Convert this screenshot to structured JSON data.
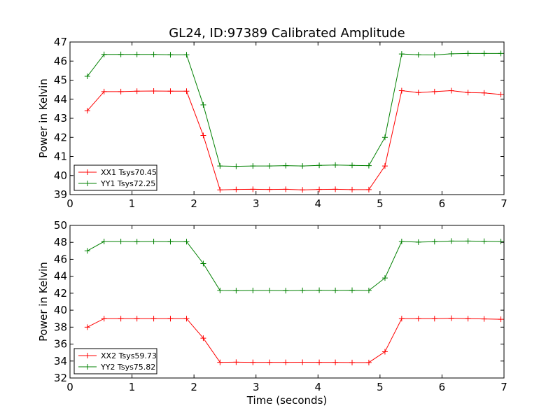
{
  "figure_title": "GL24, ID:97389 Calibrated Amplitude",
  "chart_data": [
    {
      "type": "line",
      "title": "GL24, ID:97389 Calibrated Amplitude",
      "xlabel": "",
      "ylabel": "Power in Kelvin",
      "xlim": [
        0,
        7
      ],
      "ylim": [
        39,
        47
      ],
      "xticks": [
        0,
        1,
        2,
        3,
        4,
        5,
        6,
        7
      ],
      "yticks": [
        39,
        40,
        41,
        42,
        43,
        44,
        45,
        46,
        47
      ],
      "grid": false,
      "legend_position": "lower-left",
      "x": [
        0.28,
        0.55,
        0.82,
        1.08,
        1.35,
        1.62,
        1.88,
        2.15,
        2.42,
        2.68,
        2.95,
        3.22,
        3.48,
        3.75,
        4.02,
        4.28,
        4.55,
        4.82,
        5.08,
        5.35,
        5.62,
        5.88,
        6.15,
        6.42,
        6.68,
        6.95
      ],
      "series": [
        {
          "name": "XX1 Tsys70.45",
          "color": "#ff0000",
          "values": [
            43.4,
            44.4,
            44.4,
            44.42,
            44.43,
            44.42,
            44.42,
            42.1,
            39.25,
            39.27,
            39.28,
            39.27,
            39.28,
            39.25,
            39.27,
            39.28,
            39.26,
            39.26,
            40.5,
            44.45,
            44.35,
            44.4,
            44.45,
            44.35,
            44.33,
            44.25
          ]
        },
        {
          "name": "YY1 Tsys72.25",
          "color": "#008000",
          "values": [
            45.2,
            46.35,
            46.35,
            46.35,
            46.35,
            46.33,
            46.33,
            43.7,
            40.5,
            40.48,
            40.5,
            40.5,
            40.52,
            40.5,
            40.53,
            40.55,
            40.53,
            40.52,
            42.0,
            46.37,
            46.33,
            46.32,
            46.38,
            46.4,
            46.4,
            46.4
          ]
        }
      ]
    },
    {
      "type": "line",
      "title": "",
      "xlabel": "Time (seconds)",
      "ylabel": "Power in Kelvin",
      "xlim": [
        0,
        7
      ],
      "ylim": [
        32,
        50
      ],
      "xticks": [
        0,
        1,
        2,
        3,
        4,
        5,
        6,
        7
      ],
      "yticks": [
        32,
        34,
        36,
        38,
        40,
        42,
        44,
        46,
        48,
        50
      ],
      "grid": false,
      "legend_position": "lower-left",
      "x": [
        0.28,
        0.55,
        0.82,
        1.08,
        1.35,
        1.62,
        1.88,
        2.15,
        2.42,
        2.68,
        2.95,
        3.22,
        3.48,
        3.75,
        4.02,
        4.28,
        4.55,
        4.82,
        5.08,
        5.35,
        5.62,
        5.88,
        6.15,
        6.42,
        6.68,
        6.95
      ],
      "series": [
        {
          "name": "XX2 Tsys59.73",
          "color": "#ff0000",
          "values": [
            38.0,
            39.0,
            39.0,
            39.0,
            39.0,
            39.0,
            39.0,
            36.7,
            33.85,
            33.87,
            33.85,
            33.85,
            33.85,
            33.86,
            33.85,
            33.85,
            33.83,
            33.83,
            35.1,
            39.0,
            39.0,
            39.0,
            39.05,
            39.0,
            38.97,
            38.93
          ]
        },
        {
          "name": "YY2 Tsys75.82",
          "color": "#008000",
          "values": [
            47.0,
            48.1,
            48.1,
            48.08,
            48.1,
            48.08,
            48.08,
            45.5,
            42.32,
            42.3,
            42.32,
            42.32,
            42.3,
            42.33,
            42.35,
            42.33,
            42.35,
            42.32,
            43.8,
            48.1,
            48.03,
            48.08,
            48.15,
            48.15,
            48.13,
            48.1
          ]
        }
      ]
    }
  ]
}
